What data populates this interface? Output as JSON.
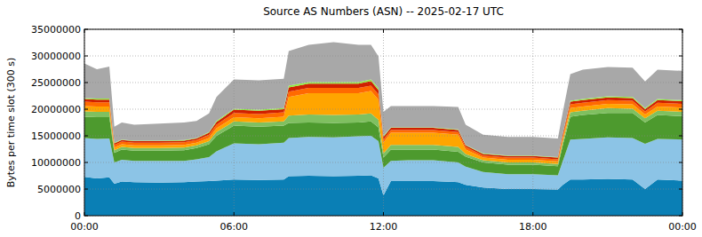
{
  "chart_data": {
    "type": "area",
    "stacked": true,
    "grid": true,
    "title": "Source AS Numbers (ASN) -- 2025-02-17 UTC",
    "y_label": "Bytes per time slot (300 s)",
    "x": [
      0,
      0.5,
      1,
      1.2,
      1.5,
      2,
      3,
      4,
      4.5,
      5,
      5.3,
      6,
      7,
      8,
      8.2,
      9,
      10,
      11,
      11.5,
      11.8,
      12,
      12.3,
      13,
      14,
      15,
      15.3,
      16,
      17,
      18,
      19,
      19.2,
      19.5,
      20,
      21,
      22,
      22.5,
      23,
      24
    ],
    "xlim": [
      0,
      24
    ],
    "xticks": [
      {
        "value": 0,
        "label": "00:00"
      },
      {
        "value": 6,
        "label": "06:00"
      },
      {
        "value": 12,
        "label": "12:00"
      },
      {
        "value": 18,
        "label": "18:00"
      },
      {
        "value": 24,
        "label": "00:00"
      }
    ],
    "ylim": [
      0,
      35000000
    ],
    "yticks": [
      0,
      5000000,
      10000000,
      15000000,
      20000000,
      25000000,
      30000000,
      35000000
    ],
    "series": [
      {
        "color": "#0a7fb5",
        "values": [
          7300000,
          7000000,
          7200000,
          6000000,
          6400000,
          6300000,
          6200000,
          6300000,
          6400000,
          6500000,
          6600000,
          6800000,
          6700000,
          6800000,
          7400000,
          7500000,
          7400000,
          7500000,
          7600000,
          7000000,
          3800000,
          6500000,
          6500000,
          6500000,
          6300000,
          5800000,
          5300000,
          5000000,
          5000000,
          4900000,
          5800000,
          6800000,
          6800000,
          6900000,
          6800000,
          5000000,
          6800000,
          6600000
        ]
      },
      {
        "color": "#8cc4e6",
        "values": [
          7300000,
          7400000,
          7300000,
          4000000,
          4100000,
          4000000,
          4100000,
          4000000,
          4200000,
          4500000,
          5500000,
          6800000,
          6700000,
          6900000,
          7200000,
          7300000,
          7300000,
          7400000,
          7400000,
          7000000,
          5200000,
          3800000,
          3900000,
          3900000,
          3700000,
          3400000,
          2900000,
          2800000,
          2800000,
          2700000,
          4500000,
          7500000,
          7600000,
          7800000,
          7800000,
          8500000,
          7600000,
          7700000
        ]
      },
      {
        "color": "#4d9a2e",
        "values": [
          4000000,
          4100000,
          4000000,
          1800000,
          1900000,
          1900000,
          1900000,
          2000000,
          2100000,
          2400000,
          2900000,
          3300000,
          3300000,
          3200000,
          2800000,
          2700000,
          2700000,
          2600000,
          2700000,
          2600000,
          1900000,
          2100000,
          2000000,
          2000000,
          2000000,
          1900000,
          1800000,
          1800000,
          1800000,
          1700000,
          3000000,
          4300000,
          4500000,
          4600000,
          4700000,
          4000000,
          4500000,
          4400000
        ]
      },
      {
        "color": "#7fc060",
        "values": [
          1000000,
          1000000,
          1000000,
          500000,
          500000,
          500000,
          500000,
          500000,
          500000,
          600000,
          700000,
          800000,
          800000,
          800000,
          1400000,
          1500000,
          1500000,
          1500000,
          1500000,
          1400000,
          800000,
          900000,
          900000,
          900000,
          900000,
          500000,
          400000,
          400000,
          400000,
          400000,
          600000,
          800000,
          800000,
          900000,
          800000,
          800000,
          800000,
          800000
        ]
      },
      {
        "color": "#ffa500",
        "values": [
          1000000,
          1000000,
          1000000,
          500000,
          500000,
          500000,
          500000,
          500000,
          500000,
          600000,
          700000,
          800000,
          800000,
          900000,
          3500000,
          4000000,
          4100000,
          4000000,
          4200000,
          3800000,
          2000000,
          2300000,
          2300000,
          2300000,
          2300000,
          800000,
          500000,
          500000,
          500000,
          500000,
          600000,
          800000,
          800000,
          800000,
          800000,
          700000,
          800000,
          800000
        ]
      },
      {
        "color": "#ff6a00",
        "values": [
          800000,
          800000,
          800000,
          500000,
          500000,
          500000,
          500000,
          500000,
          500000,
          600000,
          700000,
          800000,
          800000,
          800000,
          1000000,
          1000000,
          1000000,
          1000000,
          1000000,
          1000000,
          600000,
          500000,
          500000,
          500000,
          500000,
          500000,
          400000,
          400000,
          400000,
          400000,
          500000,
          700000,
          700000,
          700000,
          700000,
          600000,
          700000,
          700000
        ]
      },
      {
        "color": "#d02000",
        "values": [
          500000,
          500000,
          500000,
          300000,
          300000,
          300000,
          300000,
          300000,
          300000,
          400000,
          500000,
          600000,
          600000,
          600000,
          800000,
          800000,
          800000,
          800000,
          900000,
          800000,
          500000,
          400000,
          400000,
          400000,
          400000,
          300000,
          300000,
          300000,
          300000,
          300000,
          400000,
          500000,
          500000,
          500000,
          500000,
          400000,
          500000,
          500000
        ]
      },
      {
        "color": "#90ee40",
        "values": [
          200000,
          200000,
          200000,
          100000,
          100000,
          100000,
          100000,
          100000,
          100000,
          100000,
          200000,
          200000,
          200000,
          200000,
          300000,
          300000,
          300000,
          300000,
          300000,
          300000,
          200000,
          100000,
          100000,
          100000,
          100000,
          100000,
          100000,
          100000,
          100000,
          100000,
          100000,
          200000,
          200000,
          200000,
          200000,
          200000,
          200000,
          200000
        ]
      },
      {
        "color": "#a8a8a8",
        "values": [
          6500000,
          5500000,
          6000000,
          3000000,
          3200000,
          3000000,
          3200000,
          3300000,
          3200000,
          3500000,
          4500000,
          5500000,
          5500000,
          5500000,
          6500000,
          7000000,
          7500000,
          7000000,
          6500000,
          6000000,
          4500000,
          4000000,
          4000000,
          4000000,
          4200000,
          3800000,
          3500000,
          3500000,
          3500000,
          3500000,
          4000000,
          5000000,
          5500000,
          5500000,
          5500000,
          5000000,
          5500000,
          5500000
        ]
      }
    ]
  }
}
